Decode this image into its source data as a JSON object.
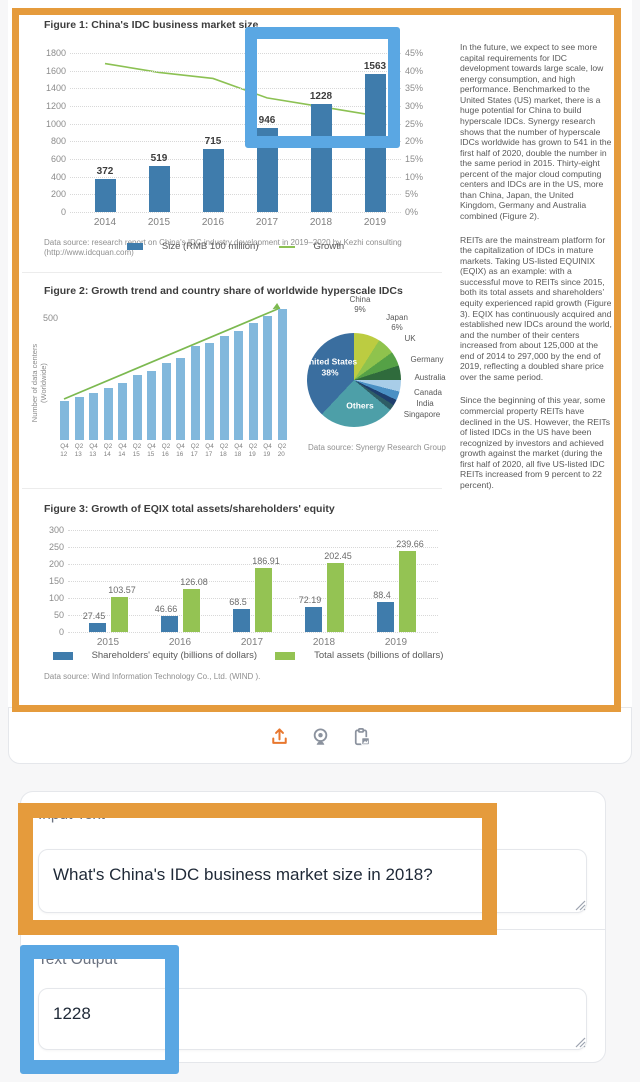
{
  "annotation_colors": {
    "orange": "#E59B3C",
    "blue": "#5AA7E3"
  },
  "doc_accent_colors": {
    "bar_blue": "#3F7CAC",
    "growth_green": "#8CC153",
    "light_blue_bar": "#82B8DC",
    "assets_green": "#94C353"
  },
  "icons": [
    {
      "name": "upload",
      "color": "#E8772E"
    },
    {
      "name": "webcam",
      "color": "#8b929e"
    },
    {
      "name": "paste-image",
      "color": "#8b929e"
    }
  ],
  "article": {
    "paragraphs": [
      "In the future, we expect to see more capital requirements for IDC development towards large scale, low energy consumption, and high performance. Benchmarked to the United States (US) market, there is a huge potential for China to build hyperscale IDCs. Synergy research shows that the number of hyperscale IDCs worldwide has grown to 541 in the first half of 2020, double the number in the same period in 2015. Thirty-eight percent of the major cloud computing centers and IDCs are in the US, more than China, Japan, the United Kingdom, Germany and Australia combined (Figure 2).",
      "REITs are the mainstream platform for the capitalization of IDCs in mature markets. Taking US-listed EQUINIX (EQIX) as an example: with a successful move to REITs since 2015, both its total assets and shareholders’ equity experienced rapid growth (Figure 3). EQIX has continuously acquired and established new IDCs around the world, and the number of their centers increased from about 125,000 at the end of 2014 to 297,000 by the end of 2019, reflecting a doubled share price over the same period.",
      "Since the beginning of this year, some commercial property REITs have declined in the US. However, the REITs of listed IDCs in the US have been recognized by investors and achieved growth against the market (during the first half of 2020, all five US-listed IDC REITs increased from 9 percent to 22 percent)."
    ]
  },
  "chart_data": [
    {
      "id": "fig1",
      "type": "bar",
      "title": "Figure 1: China's IDC business market size",
      "categories": [
        "2014",
        "2015",
        "2016",
        "2017",
        "2018",
        "2019"
      ],
      "series": [
        {
          "name": "Size (RMB 100 million)",
          "type": "bar",
          "values": [
            372,
            519,
            715,
            946,
            1228,
            1563
          ]
        },
        {
          "name": "Growth",
          "type": "line",
          "values_pct": [
            42,
            39.5,
            37.8,
            32.3,
            29.8,
            27.3
          ]
        }
      ],
      "y_left": {
        "min": 0,
        "max": 1800,
        "step": 200
      },
      "y_right": {
        "min": 0,
        "max": 45,
        "step": 5,
        "suffix": "%"
      },
      "grid": true,
      "legend_position": "bottom",
      "source": "Data source: research report on China's IDC industry development in 2019–2020 by Kezhi consulting (http://www.idcquan.com)"
    },
    {
      "id": "fig2bar",
      "type": "bar",
      "title": "Figure 2: Growth trend and country share of worldwide hyperscale IDCs",
      "ylabel": "Number of data centers (Worldwide)",
      "ytick_label": "500",
      "categories": [
        "Q4 12",
        "Q2 13",
        "Q4 13",
        "Q2 14",
        "Q4 14",
        "Q2 15",
        "Q4 15",
        "Q2 16",
        "Q4 16",
        "Q2 17",
        "Q4 17",
        "Q2 18",
        "Q4 18",
        "Q2 19",
        "Q4 19",
        "Q2 20"
      ],
      "values": [
        160,
        178,
        196,
        215,
        235,
        268,
        285,
        320,
        340,
        390,
        400,
        430,
        450,
        485,
        512,
        541
      ],
      "ylim": [
        0,
        560
      ],
      "trend_arrow": true
    },
    {
      "id": "fig2pie",
      "type": "pie",
      "slices": [
        {
          "label": "China",
          "pct": 9,
          "color": "#BCCC41",
          "show_pct": true
        },
        {
          "label": "Japan",
          "pct": 6,
          "color": "#8FC34D",
          "show_pct": true
        },
        {
          "label": "UK",
          "pct": 5,
          "color": "#55A146"
        },
        {
          "label": "Germany",
          "pct": 5,
          "color": "#2F6B3C"
        },
        {
          "label": "Australia",
          "pct": 4,
          "color": "#A8CDE8"
        },
        {
          "label": "Canada",
          "pct": 3,
          "color": "#4A90C4"
        },
        {
          "label": "India",
          "pct": 2,
          "color": "#1F3F6E"
        },
        {
          "label": "Singapore",
          "pct": 2,
          "color": "#2E5D66"
        },
        {
          "label": "Others",
          "pct": 26,
          "color": "#4D9FA8",
          "inside": true
        },
        {
          "label": "United States",
          "pct": 38,
          "color": "#3A6E9F",
          "inside": true,
          "show_pct": true
        }
      ],
      "source": "Data source: Synergy Research Group"
    },
    {
      "id": "fig3",
      "type": "bar",
      "title": "Figure 3: Growth of EQIX total assets/shareholders' equity",
      "categories": [
        "2015",
        "2016",
        "2017",
        "2018",
        "2019"
      ],
      "series": [
        {
          "name": "Shareholders' equity (billions of dollars)",
          "values": [
            27.45,
            46.66,
            68.5,
            72.19,
            88.4
          ]
        },
        {
          "name": "Total assets (billions of dollars)",
          "values": [
            103.57,
            126.08,
            186.91,
            202.45,
            239.66
          ]
        }
      ],
      "y": {
        "min": 0,
        "max": 300,
        "step": 50
      },
      "grid": true,
      "legend_position": "bottom",
      "source": "Data source: Wind Information Technology Co., Ltd. (WIND )."
    }
  ],
  "io": {
    "input": {
      "label": "Input Text",
      "value": "What's China's IDC business market size in 2018?"
    },
    "output": {
      "label": "Text Output",
      "value": "1228"
    }
  }
}
